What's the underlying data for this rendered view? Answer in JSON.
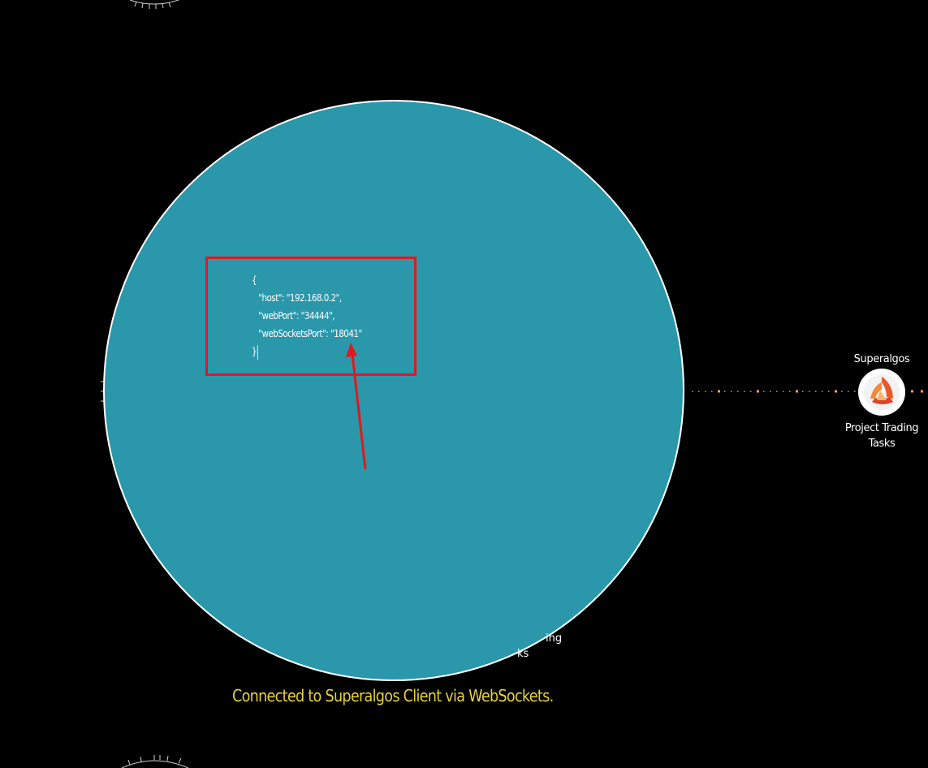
{
  "colors": {
    "background": "#000000",
    "circle_fill": "#2a97ab",
    "circle_border": "#ffffff",
    "annotation": "#e01a1a",
    "status": "#e8d23a",
    "connector": "#f4a070"
  },
  "editor": {
    "code_lines": [
      "{",
      "   \"host\": \"192.168.0.2\",",
      "   \"webPort\": \"34444\",",
      "   \"webSocketsPort\": \"18041\"",
      "}"
    ]
  },
  "node": {
    "icon": "superalgos-logo-icon",
    "title": "Superalgos",
    "subtitle_line1": "Project Trading",
    "subtitle_line2": "Tasks"
  },
  "partial_labels": {
    "line1": "ing",
    "line2": "ks"
  },
  "status": {
    "message": "Connected to Superalgos Client via WebSockets."
  }
}
